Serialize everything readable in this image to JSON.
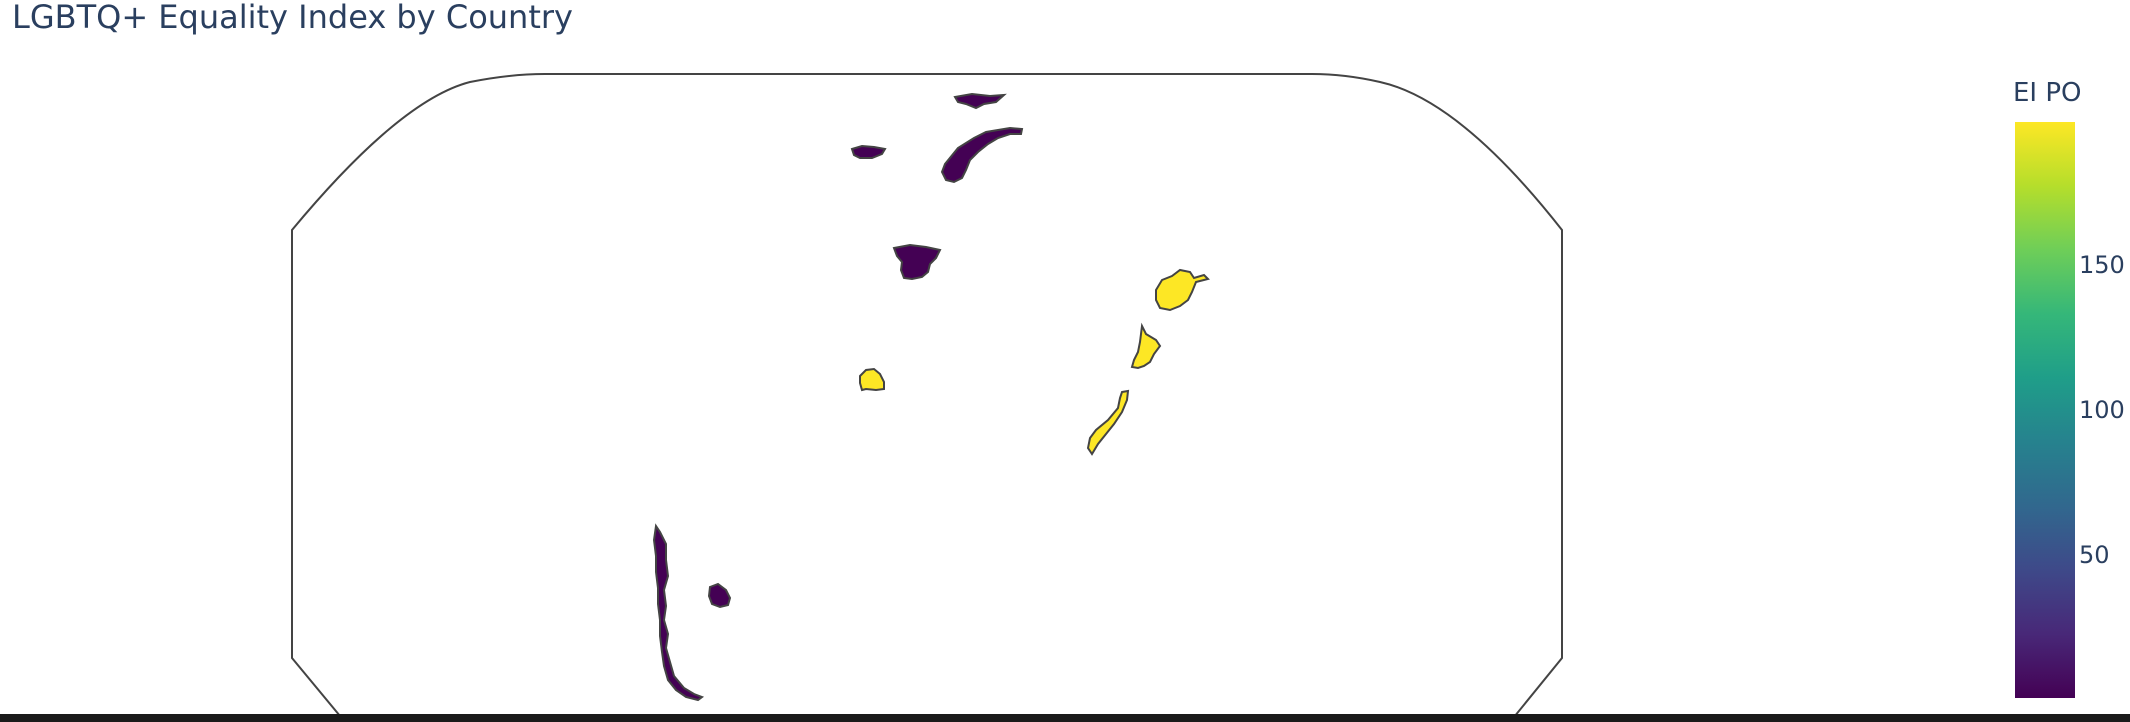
{
  "title": "LGBTQ+ Equality Index by Country",
  "chart_data": {
    "type": "choropleth",
    "title": "LGBTQ+ Equality Index by Country",
    "colorbar": {
      "title": "EI PO",
      "colorscale": "Viridis",
      "range": [
        1,
        199
      ],
      "ticks": [
        {
          "value": 50,
          "label": "50"
        },
        {
          "value": 100,
          "label": "100"
        },
        {
          "value": 150,
          "label": "150"
        }
      ]
    },
    "stops": [
      "#440154",
      "#482878",
      "#3e4989",
      "#31688e",
      "#26828e",
      "#1f9e89",
      "#35b779",
      "#6ece58",
      "#b5de2b",
      "#fde725"
    ],
    "colors": {
      "low": "#440154",
      "high": "#fde725",
      "border": "#444444",
      "frame": "#444444"
    },
    "regions": [
      {
        "id": "iceland",
        "value": 1
      },
      {
        "id": "ireland",
        "value": 1
      },
      {
        "id": "norway",
        "value": 1
      },
      {
        "id": "spain",
        "value": 1
      },
      {
        "id": "afghanistan",
        "value": 199
      },
      {
        "id": "yemen",
        "value": 199
      },
      {
        "id": "somalia",
        "value": 199
      },
      {
        "id": "senegal",
        "value": 199
      },
      {
        "id": "chile",
        "value": 1
      },
      {
        "id": "uruguay",
        "value": 1
      }
    ]
  }
}
